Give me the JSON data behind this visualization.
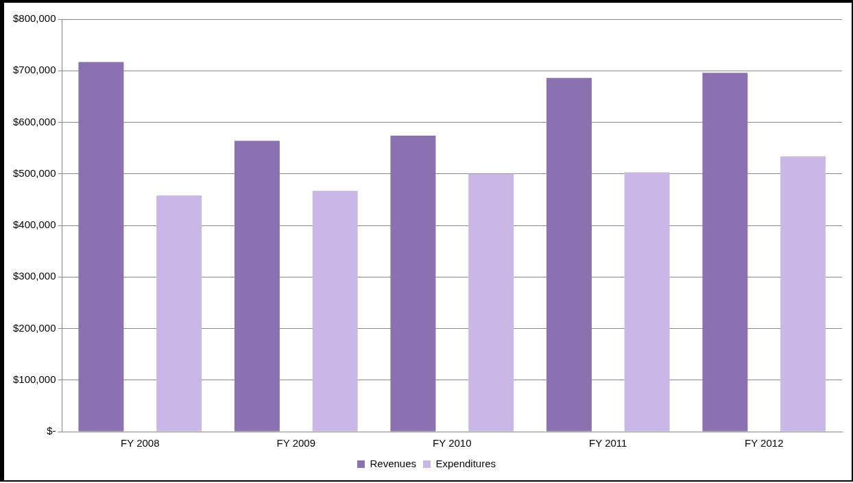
{
  "chart_data": {
    "type": "bar",
    "categories": [
      "FY 2008",
      "FY 2009",
      "FY 2010",
      "FY 2011",
      "FY 2012"
    ],
    "series": [
      {
        "name": "Revenues",
        "color": "#8a72b0",
        "values": [
          717000,
          564000,
          574000,
          686000,
          696000
        ]
      },
      {
        "name": "Expenditures",
        "color": "#c9b8e6",
        "values": [
          458000,
          467000,
          500000,
          503000,
          534000
        ]
      }
    ],
    "ylim": [
      0,
      800000
    ],
    "yticks": [
      {
        "value": 0,
        "label": "$-"
      },
      {
        "value": 100000,
        "label": "$100,000"
      },
      {
        "value": 200000,
        "label": "$200,000"
      },
      {
        "value": 300000,
        "label": "$300,000"
      },
      {
        "value": 400000,
        "label": "$400,000"
      },
      {
        "value": 500000,
        "label": "$500,000"
      },
      {
        "value": 600000,
        "label": "$600,000"
      },
      {
        "value": 700000,
        "label": "$700,000"
      },
      {
        "value": 800000,
        "label": "$800,000"
      }
    ],
    "grid": "y",
    "legend": "bottom"
  }
}
